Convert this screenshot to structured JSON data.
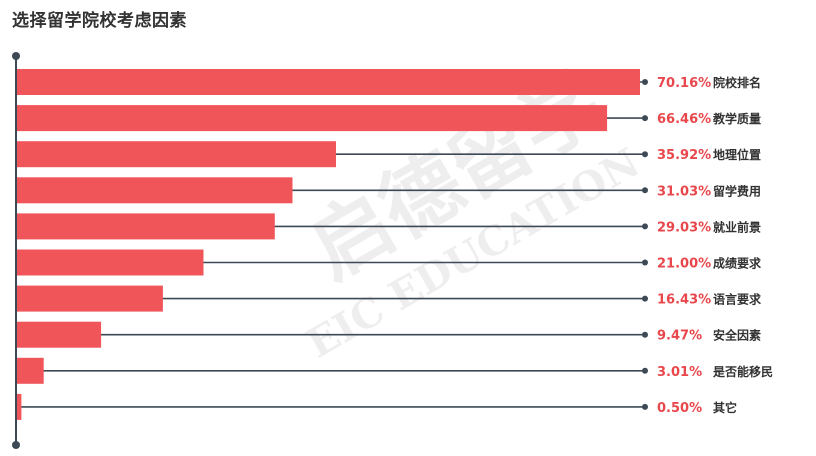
{
  "title": "选择留学院校考虑因素",
  "watermark": {
    "brand_cn": "启德留学",
    "brand_en": "EIC EDUCATION"
  },
  "colors": {
    "bar": "#f0555a",
    "value_text": "#e8474c",
    "axis": "#3d4a55",
    "label_text": "#333333"
  },
  "chart_data": {
    "type": "bar",
    "orientation": "horizontal",
    "title": "选择留学院校考虑因素",
    "xlabel": "",
    "ylabel": "",
    "xlim": [
      0,
      75
    ],
    "grid": false,
    "legend": "none",
    "categories": [
      "院校排名",
      "教学质量",
      "地理位置",
      "留学费用",
      "就业前景",
      "成绩要求",
      "语言要求",
      "安全因素",
      "是否能移民",
      "其它"
    ],
    "values": [
      70.16,
      66.46,
      35.92,
      31.03,
      29.03,
      21.0,
      16.43,
      9.47,
      3.01,
      0.5
    ],
    "value_labels": [
      "70.16%",
      "66.46%",
      "35.92%",
      "31.03%",
      "29.03%",
      "21.00%",
      "16.43%",
      "9.47%",
      "3.01%",
      "0.50%"
    ]
  }
}
